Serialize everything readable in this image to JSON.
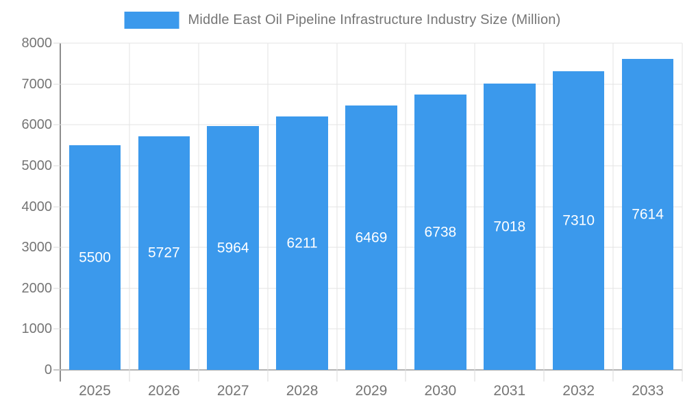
{
  "legend": {
    "label": "Middle East Oil Pipeline Infrastructure Industry Size (Million)"
  },
  "colors": {
    "bar": "#3B99EC",
    "text": "#757575",
    "grid": "#E3E3E3",
    "tick": "#D9D9D9",
    "axis": "#B3B3B3",
    "axis_strong": "#8C8C8C",
    "bar_label": "#FFFFFF",
    "background": "#FFFFFF"
  },
  "chart_data": {
    "type": "bar",
    "title": "Middle East Oil Pipeline Infrastructure Industry Size (Million)",
    "categories": [
      "2025",
      "2026",
      "2027",
      "2028",
      "2029",
      "2030",
      "2031",
      "2032",
      "2033"
    ],
    "values": [
      5500,
      5727,
      5964,
      6211,
      6469,
      6738,
      7018,
      7310,
      7614
    ],
    "series_name": "Middle East Oil Pipeline Infrastructure Industry Size (Million)",
    "xlabel": "",
    "ylabel": "",
    "ylim": [
      0,
      8000
    ],
    "y_ticks": [
      0,
      1000,
      2000,
      3000,
      4000,
      5000,
      6000,
      7000,
      8000
    ],
    "grid": true,
    "legend_position": "top",
    "value_labels": "inside-center"
  }
}
